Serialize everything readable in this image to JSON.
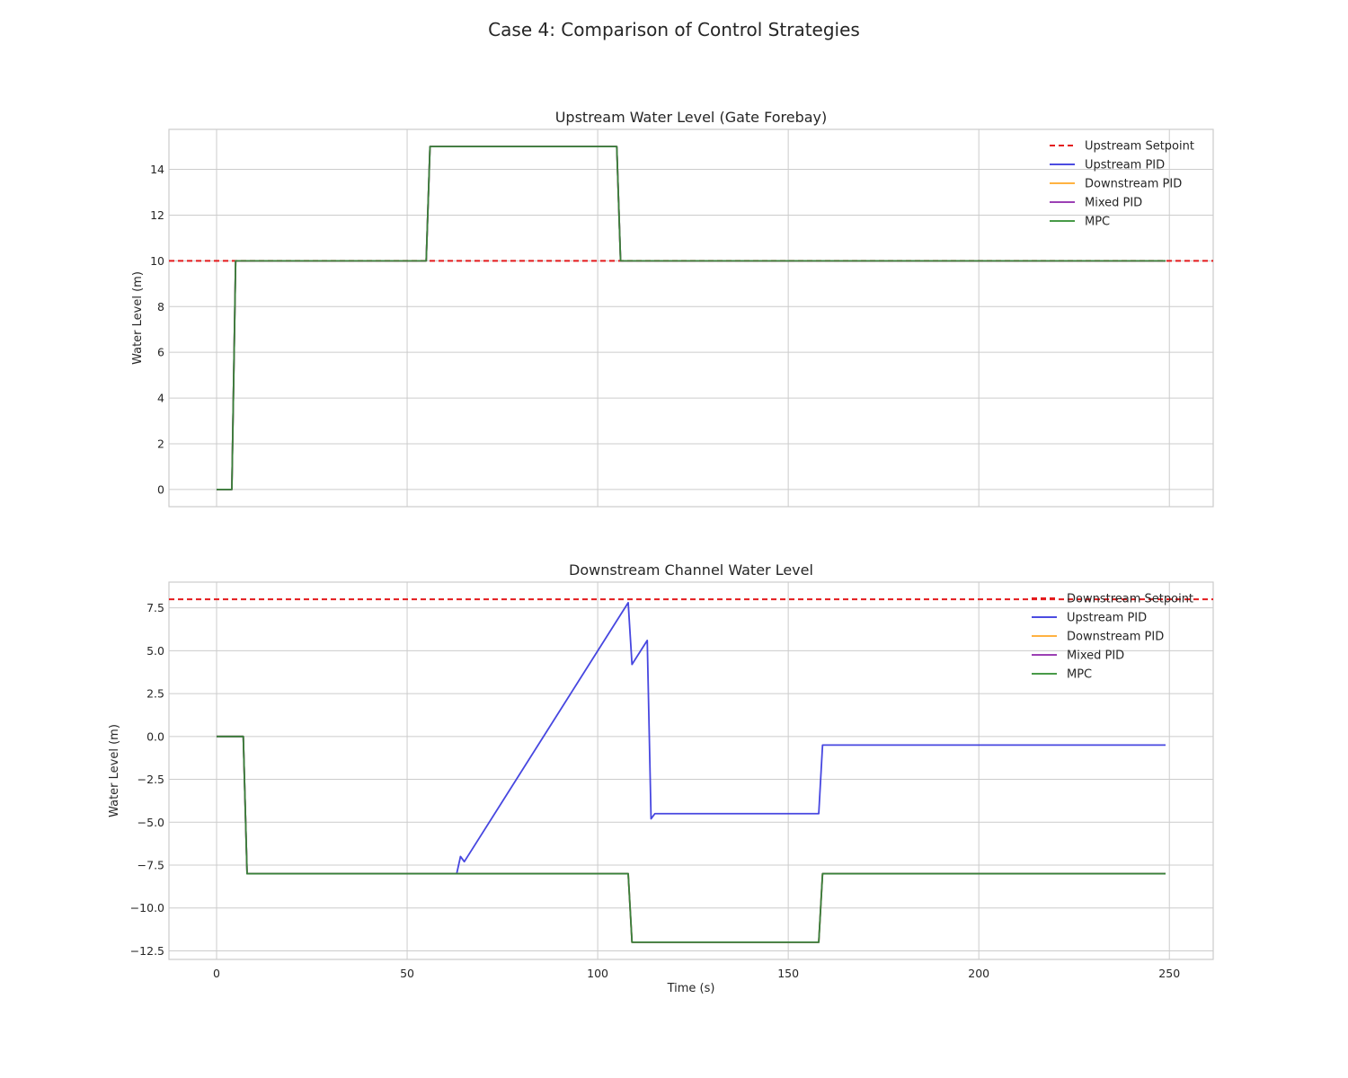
{
  "figure": {
    "title": "Case 4: Comparison of Control Strategies"
  },
  "colors": {
    "setpoint": "#e41a1c",
    "upstream_pid": "#3333dd",
    "downstream_pid": "#ffa726",
    "mixed_pid": "#8e24aa",
    "mpc": "#2e8b2e"
  },
  "chart_data": [
    {
      "type": "line",
      "title": "Upstream Water Level (Gate Forebay)",
      "xlabel": "",
      "ylabel": "Water Level (m)",
      "xlim": [
        -12.5,
        261.5
      ],
      "ylim": [
        -0.75,
        15.75
      ],
      "xticks": [
        0,
        50,
        100,
        150,
        200,
        250
      ],
      "xtick_labels": [
        "",
        "",
        "",
        "",
        "",
        ""
      ],
      "yticks": [
        0,
        2,
        4,
        6,
        8,
        10,
        12,
        14
      ],
      "ytick_labels": [
        "0",
        "2",
        "4",
        "6",
        "8",
        "10",
        "12",
        "14"
      ],
      "grid": true,
      "legend_position": "top-right",
      "setpoint": {
        "name": "Upstream Setpoint",
        "y": 10
      },
      "series": [
        {
          "name": "Upstream PID",
          "color_key": "upstream_pid",
          "x": [
            0,
            4,
            5,
            55,
            56,
            105,
            106,
            249
          ],
          "y": [
            0,
            0,
            10,
            10,
            15,
            15,
            10,
            10
          ]
        },
        {
          "name": "Downstream PID",
          "color_key": "downstream_pid",
          "x": [
            0,
            4,
            5,
            55,
            56,
            105,
            106,
            249
          ],
          "y": [
            0,
            0,
            10,
            10,
            15,
            15,
            10,
            10
          ]
        },
        {
          "name": "Mixed PID",
          "color_key": "mixed_pid",
          "x": [
            0,
            4,
            5,
            55,
            56,
            105,
            106,
            249
          ],
          "y": [
            0,
            0,
            10,
            10,
            15,
            15,
            10,
            10
          ]
        },
        {
          "name": "MPC",
          "color_key": "mpc",
          "x": [
            0,
            4,
            5,
            55,
            56,
            105,
            106,
            249
          ],
          "y": [
            0,
            0,
            10,
            10,
            15,
            15,
            10,
            10
          ]
        }
      ]
    },
    {
      "type": "line",
      "title": "Downstream Channel Water Level",
      "xlabel": "Time (s)",
      "ylabel": "Water Level (m)",
      "xlim": [
        -12.5,
        261.5
      ],
      "ylim": [
        -13.0,
        9.0
      ],
      "xticks": [
        0,
        50,
        100,
        150,
        200,
        250
      ],
      "xtick_labels": [
        "0",
        "50",
        "100",
        "150",
        "200",
        "250"
      ],
      "yticks": [
        -12.5,
        -10.0,
        -7.5,
        -5.0,
        -2.5,
        0.0,
        2.5,
        5.0,
        7.5
      ],
      "ytick_labels": [
        "−12.5",
        "−10.0",
        "−7.5",
        "−5.0",
        "−2.5",
        "0.0",
        "2.5",
        "5.0",
        "7.5"
      ],
      "grid": true,
      "legend_position": "top-right",
      "setpoint": {
        "name": "Downstream Setpoint",
        "y": 8
      },
      "series": [
        {
          "name": "Upstream PID",
          "color_key": "upstream_pid",
          "x": [
            0,
            7,
            8,
            63,
            64,
            65,
            108,
            109,
            113,
            114,
            115,
            158,
            159,
            249
          ],
          "y": [
            0,
            0,
            -8,
            -8,
            -7,
            -7.3,
            7.8,
            4.2,
            5.6,
            -4.8,
            -4.5,
            -4.5,
            -0.5,
            -0.5
          ]
        },
        {
          "name": "Downstream PID",
          "color_key": "downstream_pid",
          "x": [
            0,
            7,
            8,
            108,
            109,
            158,
            159,
            249
          ],
          "y": [
            0,
            0,
            -8,
            -8,
            -12,
            -12,
            -8,
            -8
          ]
        },
        {
          "name": "Mixed PID",
          "color_key": "mixed_pid",
          "x": [
            0,
            7,
            8,
            108,
            109,
            158,
            159,
            249
          ],
          "y": [
            0,
            0,
            -8,
            -8,
            -12,
            -12,
            -8,
            -8
          ]
        },
        {
          "name": "MPC",
          "color_key": "mpc",
          "x": [
            0,
            7,
            8,
            108,
            109,
            158,
            159,
            249
          ],
          "y": [
            0,
            0,
            -8,
            -8,
            -12,
            -12,
            -8,
            -8
          ]
        }
      ]
    }
  ]
}
